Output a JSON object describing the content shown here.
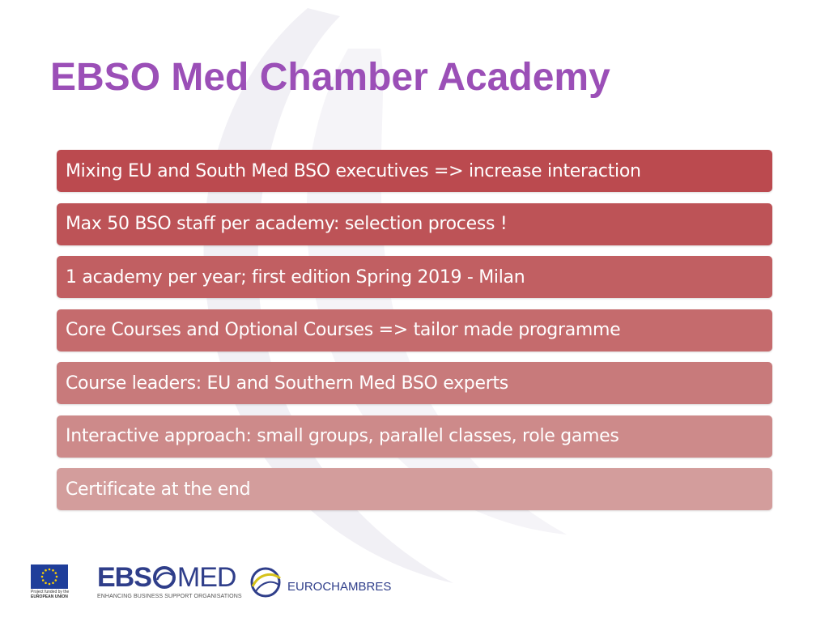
{
  "slide": {
    "title": "EBSO Med Chamber Academy",
    "title_color": "#9b4fb7",
    "bullets": [
      "Mixing EU and South Med BSO executives => increase interaction",
      "Max 50 BSO staff per academy: selection process !",
      "1 academy per year; first edition Spring 2019 - Milan",
      "Core Courses and Optional Courses => tailor made programme",
      "Course leaders: EU and Southern Med BSO experts",
      "Interactive approach: small groups, parallel classes, role games",
      "Certificate at the end"
    ],
    "bullet_colors": [
      "#bb4a4f",
      "#bd5357",
      "#c15f62",
      "#c56b6d",
      "#c87a7b",
      "#cd8a8a",
      "#d39d9c"
    ]
  },
  "footer": {
    "eu_line1": "Project funded by the",
    "eu_line2": "EUROPEAN UNION",
    "ebso_prefix": "EBS",
    "ebso_suffix": "MED",
    "ebso_tagline": "ENHANCING BUSINESS SUPPORT ORGANISATIONS",
    "eurochambres": "EUROCHAMBRES"
  }
}
